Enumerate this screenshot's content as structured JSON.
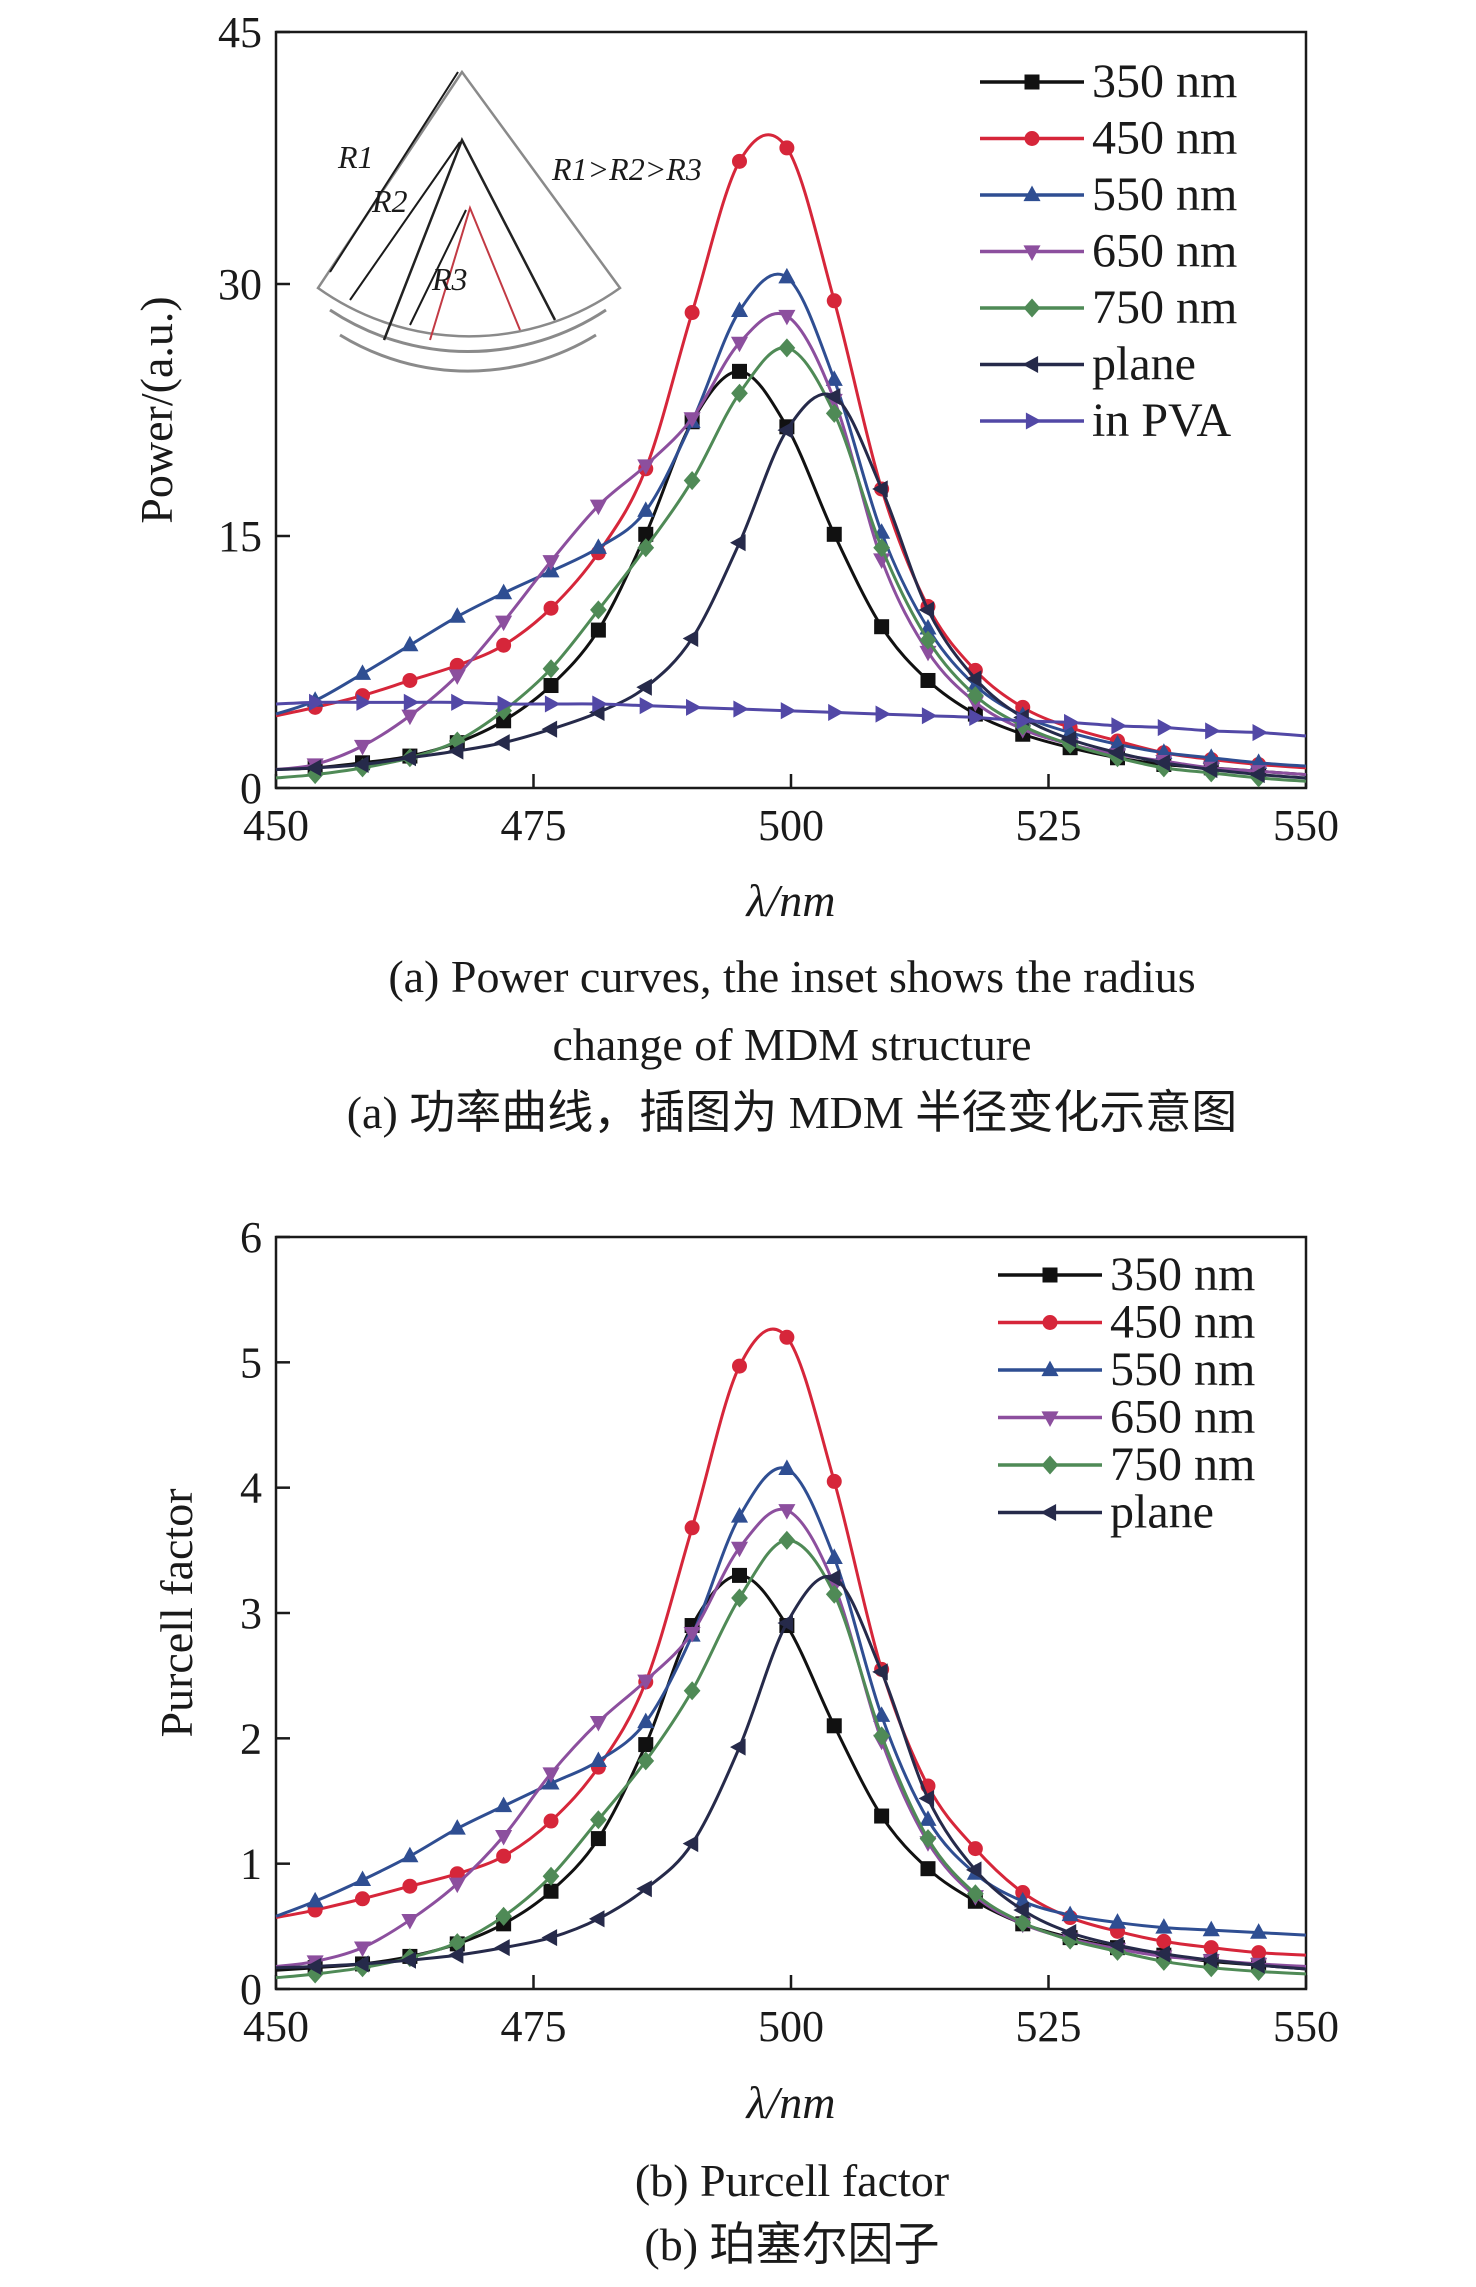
{
  "colors": {
    "350 nm": "#111111",
    "450 nm": "#d6263a",
    "550 nm": "#2f4e92",
    "650 nm": "#8c4f9e",
    "750 nm": "#4f8a56",
    "plane": "#262a4a",
    "in PVA": "#5248a6"
  },
  "chart_data": [
    {
      "type": "line",
      "panel": "a",
      "ylabel": "Power/(a.u.)",
      "xlabel": "λ/nm",
      "xlim": [
        450,
        550
      ],
      "ylim": [
        0,
        45
      ],
      "xticks": [
        "450",
        "475",
        "500",
        "525",
        "550"
      ],
      "yticks": [
        "0",
        "15",
        "30",
        "45"
      ],
      "legend_position": "top-right",
      "x": [
        450,
        453.8,
        458.4,
        463,
        467.6,
        472.1,
        476.7,
        481.3,
        485.9,
        490.4,
        495,
        499.6,
        504.2,
        508.8,
        513.3,
        517.9,
        522.5,
        527.1,
        531.7,
        536.2,
        540.8,
        545.4,
        550
      ],
      "series": [
        {
          "name": "350 nm",
          "marker": "square",
          "values": [
            1.1,
            1.2,
            1.5,
            1.9,
            2.7,
            4.0,
            6.1,
            9.4,
            15.1,
            21.8,
            24.8,
            21.5,
            15.1,
            9.6,
            6.4,
            4.4,
            3.2,
            2.4,
            1.8,
            1.4,
            1.2,
            1.0,
            0.8
          ]
        },
        {
          "name": "450 nm",
          "marker": "circle",
          "values": [
            4.3,
            4.8,
            5.5,
            6.4,
            7.3,
            8.5,
            10.7,
            14.0,
            19.0,
            28.3,
            37.3,
            38.1,
            29.0,
            17.8,
            10.8,
            7.0,
            4.8,
            3.6,
            2.8,
            2.1,
            1.7,
            1.4,
            1.2
          ]
        },
        {
          "name": "550 nm",
          "marker": "triangle-up",
          "values": [
            4.4,
            5.2,
            6.8,
            8.5,
            10.2,
            11.6,
            12.9,
            14.3,
            16.5,
            21.8,
            28.4,
            30.4,
            24.3,
            15.2,
            9.5,
            6.1,
            4.3,
            3.3,
            2.6,
            2.1,
            1.8,
            1.5,
            1.3
          ]
        },
        {
          "name": "650 nm",
          "marker": "triangle-down",
          "values": [
            1.1,
            1.4,
            2.5,
            4.3,
            6.7,
            9.9,
            13.5,
            16.8,
            19.2,
            22.0,
            26.5,
            28.1,
            23.1,
            13.6,
            8.1,
            5.1,
            3.5,
            2.6,
            2.0,
            1.6,
            1.2,
            1.0,
            0.8
          ]
        },
        {
          "name": "750 nm",
          "marker": "diamond",
          "values": [
            0.6,
            0.8,
            1.2,
            1.8,
            2.8,
            4.6,
            7.1,
            10.6,
            14.3,
            18.3,
            23.5,
            26.2,
            22.3,
            14.3,
            8.8,
            5.5,
            3.7,
            2.6,
            1.8,
            1.2,
            0.9,
            0.6,
            0.4
          ]
        },
        {
          "name": "plane",
          "marker": "triangle-left",
          "values": [
            1.1,
            1.2,
            1.4,
            1.8,
            2.2,
            2.7,
            3.5,
            4.5,
            6.0,
            8.9,
            14.6,
            21.3,
            23.3,
            17.8,
            10.6,
            6.5,
            4.2,
            2.9,
            2.1,
            1.5,
            1.1,
            0.8,
            0.6
          ]
        },
        {
          "name": "in PVA",
          "marker": "triangle-right",
          "values": [
            5.0,
            5.1,
            5.1,
            5.1,
            5.1,
            5.0,
            5.0,
            5.0,
            4.9,
            4.8,
            4.7,
            4.6,
            4.5,
            4.4,
            4.3,
            4.2,
            4.0,
            3.9,
            3.7,
            3.6,
            3.4,
            3.3,
            3.1
          ]
        }
      ],
      "inset": {
        "labels": [
          "R1",
          "R2",
          "R3"
        ],
        "relation": "R1>R2>R3"
      },
      "caption_en": "(a) Power curves, the inset shows the radius change of MDM structure",
      "caption_en_line1": "(a) Power curves, the inset shows the radius",
      "caption_en_line2": "change of MDM structure",
      "caption_zh": "(a) 功率曲线，插图为 MDM 半径变化示意图"
    },
    {
      "type": "line",
      "panel": "b",
      "ylabel": "Purcell factor",
      "xlabel": "λ/nm",
      "xlim": [
        450,
        550
      ],
      "ylim": [
        0,
        6
      ],
      "xticks": [
        "450",
        "475",
        "500",
        "525",
        "550"
      ],
      "yticks": [
        "0",
        "1",
        "2",
        "3",
        "4",
        "5",
        "6"
      ],
      "legend_position": "top-right",
      "x": [
        450,
        453.8,
        458.4,
        463,
        467.6,
        472.1,
        476.7,
        481.3,
        485.9,
        490.4,
        495,
        499.6,
        504.2,
        508.8,
        513.3,
        517.9,
        522.5,
        527.1,
        531.7,
        536.2,
        540.8,
        545.4,
        550
      ],
      "series": [
        {
          "name": "350 nm",
          "marker": "square",
          "values": [
            0.15,
            0.17,
            0.2,
            0.26,
            0.36,
            0.52,
            0.78,
            1.2,
            1.95,
            2.9,
            3.3,
            2.9,
            2.1,
            1.38,
            0.96,
            0.7,
            0.52,
            0.41,
            0.33,
            0.27,
            0.22,
            0.19,
            0.16
          ]
        },
        {
          "name": "450 nm",
          "marker": "circle",
          "values": [
            0.57,
            0.63,
            0.72,
            0.82,
            0.92,
            1.06,
            1.34,
            1.77,
            2.45,
            3.68,
            4.97,
            5.2,
            4.05,
            2.55,
            1.62,
            1.12,
            0.77,
            0.57,
            0.46,
            0.38,
            0.33,
            0.29,
            0.27
          ]
        },
        {
          "name": "550 nm",
          "marker": "triangle-up",
          "values": [
            0.58,
            0.7,
            0.87,
            1.06,
            1.28,
            1.46,
            1.64,
            1.82,
            2.13,
            2.82,
            3.77,
            4.15,
            3.44,
            2.18,
            1.35,
            0.92,
            0.7,
            0.59,
            0.53,
            0.49,
            0.47,
            0.45,
            0.43
          ]
        },
        {
          "name": "650 nm",
          "marker": "triangle-down",
          "values": [
            0.18,
            0.22,
            0.33,
            0.55,
            0.84,
            1.22,
            1.72,
            2.13,
            2.46,
            2.84,
            3.52,
            3.82,
            3.22,
            1.98,
            1.17,
            0.74,
            0.52,
            0.4,
            0.32,
            0.26,
            0.23,
            0.2,
            0.18
          ]
        },
        {
          "name": "750 nm",
          "marker": "diamond",
          "values": [
            0.09,
            0.12,
            0.17,
            0.25,
            0.37,
            0.58,
            0.9,
            1.35,
            1.82,
            2.38,
            3.12,
            3.58,
            3.15,
            2.02,
            1.2,
            0.76,
            0.53,
            0.39,
            0.3,
            0.22,
            0.17,
            0.14,
            0.12
          ]
        },
        {
          "name": "plane",
          "marker": "triangle-left",
          "values": [
            0.17,
            0.18,
            0.2,
            0.23,
            0.27,
            0.33,
            0.41,
            0.56,
            0.8,
            1.16,
            1.93,
            2.92,
            3.28,
            2.53,
            1.52,
            0.95,
            0.63,
            0.45,
            0.35,
            0.28,
            0.23,
            0.19,
            0.16
          ]
        }
      ],
      "caption_en": "(b) Purcell factor",
      "caption_zh": "(b) 珀塞尔因子"
    }
  ]
}
